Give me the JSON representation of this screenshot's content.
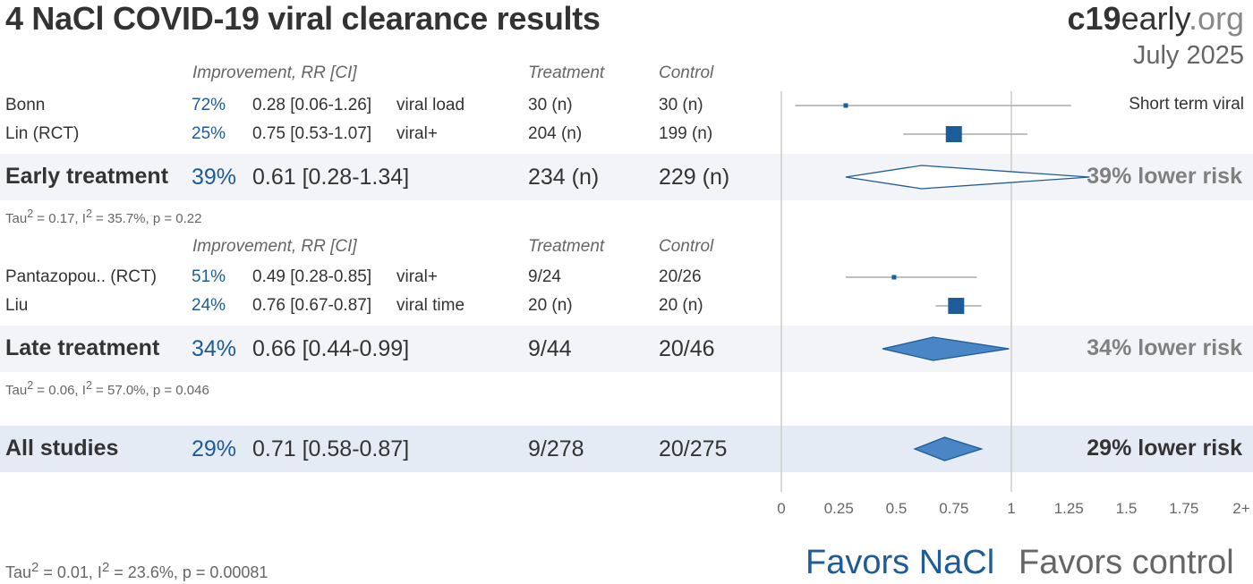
{
  "title": "4 NaCl COVID-19 viral clearance results",
  "logo": {
    "bold": "c19",
    "mid": "early",
    "org": ".org"
  },
  "date": "July 2025",
  "headers": {
    "improvement": "Improvement, RR [CI]",
    "treatment": "Treatment",
    "control": "Control"
  },
  "short_term_note": "Short term viral",
  "groups": [
    {
      "studies": [
        {
          "name": "Bonn",
          "pct": "72%",
          "rr": "0.28 [0.06-1.26]",
          "outcome": "viral load",
          "treatment": "30 (n)",
          "control": "30 (n)"
        },
        {
          "name": "Lin (RCT)",
          "pct": "25%",
          "rr": "0.75 [0.53-1.07]",
          "outcome": "viral+",
          "treatment": "204 (n)",
          "control": "199 (n)"
        }
      ],
      "summary": {
        "name": "Early treatment",
        "pct": "39%",
        "rr": "0.61 [0.28-1.34]",
        "treatment": "234 (n)",
        "control": "229 (n)",
        "risk": "39% lower risk"
      },
      "tau": {
        "prefix": "Tau",
        "mid": " = 0.17, I",
        "suffix": " = 35.7%, p = 0.22"
      }
    },
    {
      "studies": [
        {
          "name": "Pantazopou.. (RCT)",
          "pct": "51%",
          "rr": "0.49 [0.28-0.85]",
          "outcome": "viral+",
          "treatment": "9/24",
          "control": "20/26"
        },
        {
          "name": "Liu",
          "pct": "24%",
          "rr": "0.76 [0.67-0.87]",
          "outcome": "viral time",
          "treatment": "20 (n)",
          "control": "20 (n)"
        }
      ],
      "summary": {
        "name": "Late treatment",
        "pct": "34%",
        "rr": "0.66 [0.44-0.99]",
        "treatment": "9/44",
        "control": "20/46",
        "risk": "34% lower risk"
      },
      "tau": {
        "prefix": "Tau",
        "mid": " = 0.06, I",
        "suffix": " = 57.0%, p = 0.046"
      }
    }
  ],
  "overall": {
    "name": "All studies",
    "pct": "29%",
    "rr": "0.71 [0.58-0.87]",
    "treatment": "9/278",
    "control": "20/275",
    "risk": "29% lower risk"
  },
  "overall_tau": {
    "prefix": "Tau",
    "mid": " = 0.01, I",
    "suffix": " = 23.6%, p = 0.00081"
  },
  "favors": {
    "left": "Favors NaCl",
    "right": "Favors control"
  },
  "colors": {
    "accent": "#1e5b99",
    "diamond_fill": "#4a86c5",
    "ci_line": "#aaaaaa",
    "axis": "#cccccc"
  },
  "chart_data": {
    "type": "forest",
    "xlim": [
      0,
      2
    ],
    "ticks": [
      "0",
      "0.25",
      "0.5",
      "0.75",
      "1",
      "1.25",
      "1.5",
      "1.75",
      "2+"
    ],
    "tick_values": [
      0,
      0.25,
      0.5,
      0.75,
      1,
      1.25,
      1.5,
      1.75,
      2
    ],
    "reference": 1,
    "studies": [
      {
        "name": "Bonn",
        "rr": 0.28,
        "lo": 0.06,
        "hi": 1.26,
        "size": "small"
      },
      {
        "name": "Lin (RCT)",
        "rr": 0.75,
        "lo": 0.53,
        "hi": 1.07,
        "size": "large"
      },
      {
        "name": "Pantazopou.. (RCT)",
        "rr": 0.49,
        "lo": 0.28,
        "hi": 0.85,
        "size": "small"
      },
      {
        "name": "Liu",
        "rr": 0.76,
        "lo": 0.67,
        "hi": 0.87,
        "size": "large"
      }
    ],
    "summaries": [
      {
        "name": "Early treatment",
        "rr": 0.61,
        "lo": 0.28,
        "hi": 1.34,
        "filled": false
      },
      {
        "name": "Late treatment",
        "rr": 0.66,
        "lo": 0.44,
        "hi": 0.99,
        "filled": true
      },
      {
        "name": "All studies",
        "rr": 0.71,
        "lo": 0.58,
        "hi": 0.87,
        "filled": true
      }
    ]
  }
}
